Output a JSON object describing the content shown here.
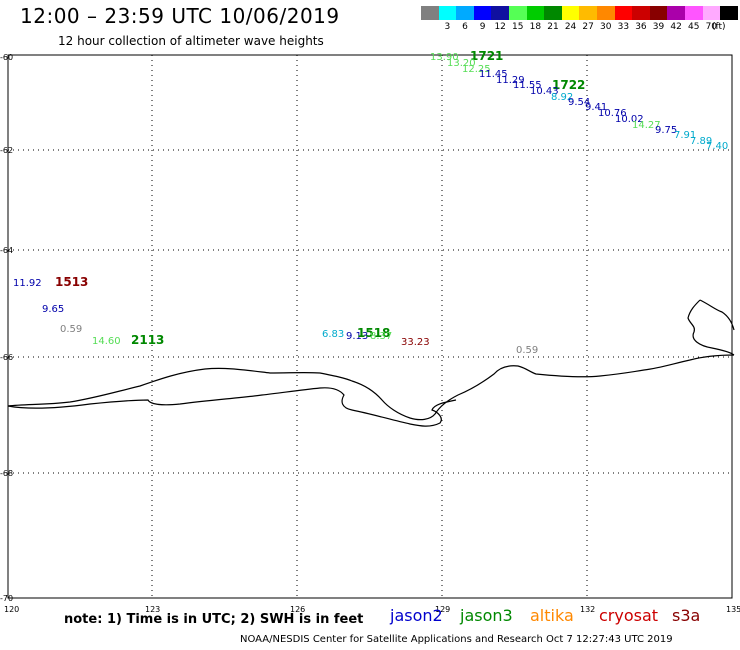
{
  "header": {
    "title": "12:00 – 23:59 UTC 10/06/2019",
    "subtitle": "12 hour collection of altimeter wave heights"
  },
  "legend": {
    "colors": [
      "#808080",
      "#00ffff",
      "#00aaff",
      "#0000ff",
      "#1010a0",
      "#55ff55",
      "#00cc00",
      "#008800",
      "#ffff00",
      "#ffbb00",
      "#ff8800",
      "#ff0000",
      "#cc0000",
      "#880000",
      "#aa00aa",
      "#ff55ff",
      "#ffaaff",
      "#000000"
    ],
    "labels": [
      "3",
      "6",
      "9",
      "12",
      "15",
      "18",
      "21",
      "24",
      "27",
      "30",
      "33",
      "36",
      "39",
      "42",
      "45",
      "70"
    ],
    "unit": "(ft)"
  },
  "axes": {
    "lat_labels": [
      "-60",
      "-62",
      "-64",
      "-66",
      "-68",
      "-70"
    ],
    "lon_labels": [
      "120",
      "123",
      "126",
      "129",
      "132",
      "135"
    ]
  },
  "observations": [
    {
      "text": "13.90",
      "color": "#55dd55"
    },
    {
      "text": "1721",
      "color": "#008800",
      "bold": true
    },
    {
      "text": "13.20",
      "color": "#55dd55"
    },
    {
      "text": "12.25",
      "color": "#55dd55"
    },
    {
      "text": "11.45",
      "color": "#0000aa"
    },
    {
      "text": "11.29",
      "color": "#0000aa"
    },
    {
      "text": "11.55",
      "color": "#0000aa"
    },
    {
      "text": "1722",
      "color": "#008800",
      "bold": true
    },
    {
      "text": "10.43",
      "color": "#0000aa"
    },
    {
      "text": "8.92",
      "color": "#00aacc"
    },
    {
      "text": "9.54",
      "color": "#0000aa"
    },
    {
      "text": "9.41",
      "color": "#0000aa"
    },
    {
      "text": "10.76",
      "color": "#0000aa"
    },
    {
      "text": "10.02",
      "color": "#0000aa"
    },
    {
      "text": "14.27",
      "color": "#55dd55"
    },
    {
      "text": "9.75",
      "color": "#0000aa"
    },
    {
      "text": "7.91",
      "color": "#00aacc"
    },
    {
      "text": "7.89",
      "color": "#00aacc"
    },
    {
      "text": "7.40",
      "color": "#00aacc"
    },
    {
      "text": "11.92",
      "color": "#0000aa"
    },
    {
      "text": "1513",
      "color": "#880000",
      "bold": true
    },
    {
      "text": "9.65",
      "color": "#0000aa"
    },
    {
      "text": "0.59",
      "color": "#808080"
    },
    {
      "text": "14.60",
      "color": "#55dd55"
    },
    {
      "text": "2113",
      "color": "#008800",
      "bold": true
    },
    {
      "text": "6.83",
      "color": "#00aacc"
    },
    {
      "text": "9.13",
      "color": "#0000aa"
    },
    {
      "text": "1518",
      "color": "#008800",
      "bold": true
    },
    {
      "text": "8.37",
      "color": "#55dd55"
    },
    {
      "text": "33.23",
      "color": "#880000"
    },
    {
      "text": "0.59",
      "color": "#808080"
    }
  ],
  "footer": {
    "note": "note:  1) Time is in UTC; 2) SWH is in feet",
    "satellites": [
      {
        "name": "jason2",
        "color": "#0000cc"
      },
      {
        "name": "jason3",
        "color": "#008800"
      },
      {
        "name": "altika",
        "color": "#ff8800"
      },
      {
        "name": "cryosat",
        "color": "#cc0000"
      },
      {
        "name": "s3a",
        "color": "#880000"
      }
    ],
    "credit": "NOAA/NESDIS Center for Satellite Applications and Research     Oct  7 12:27:43 UTC 2019"
  }
}
